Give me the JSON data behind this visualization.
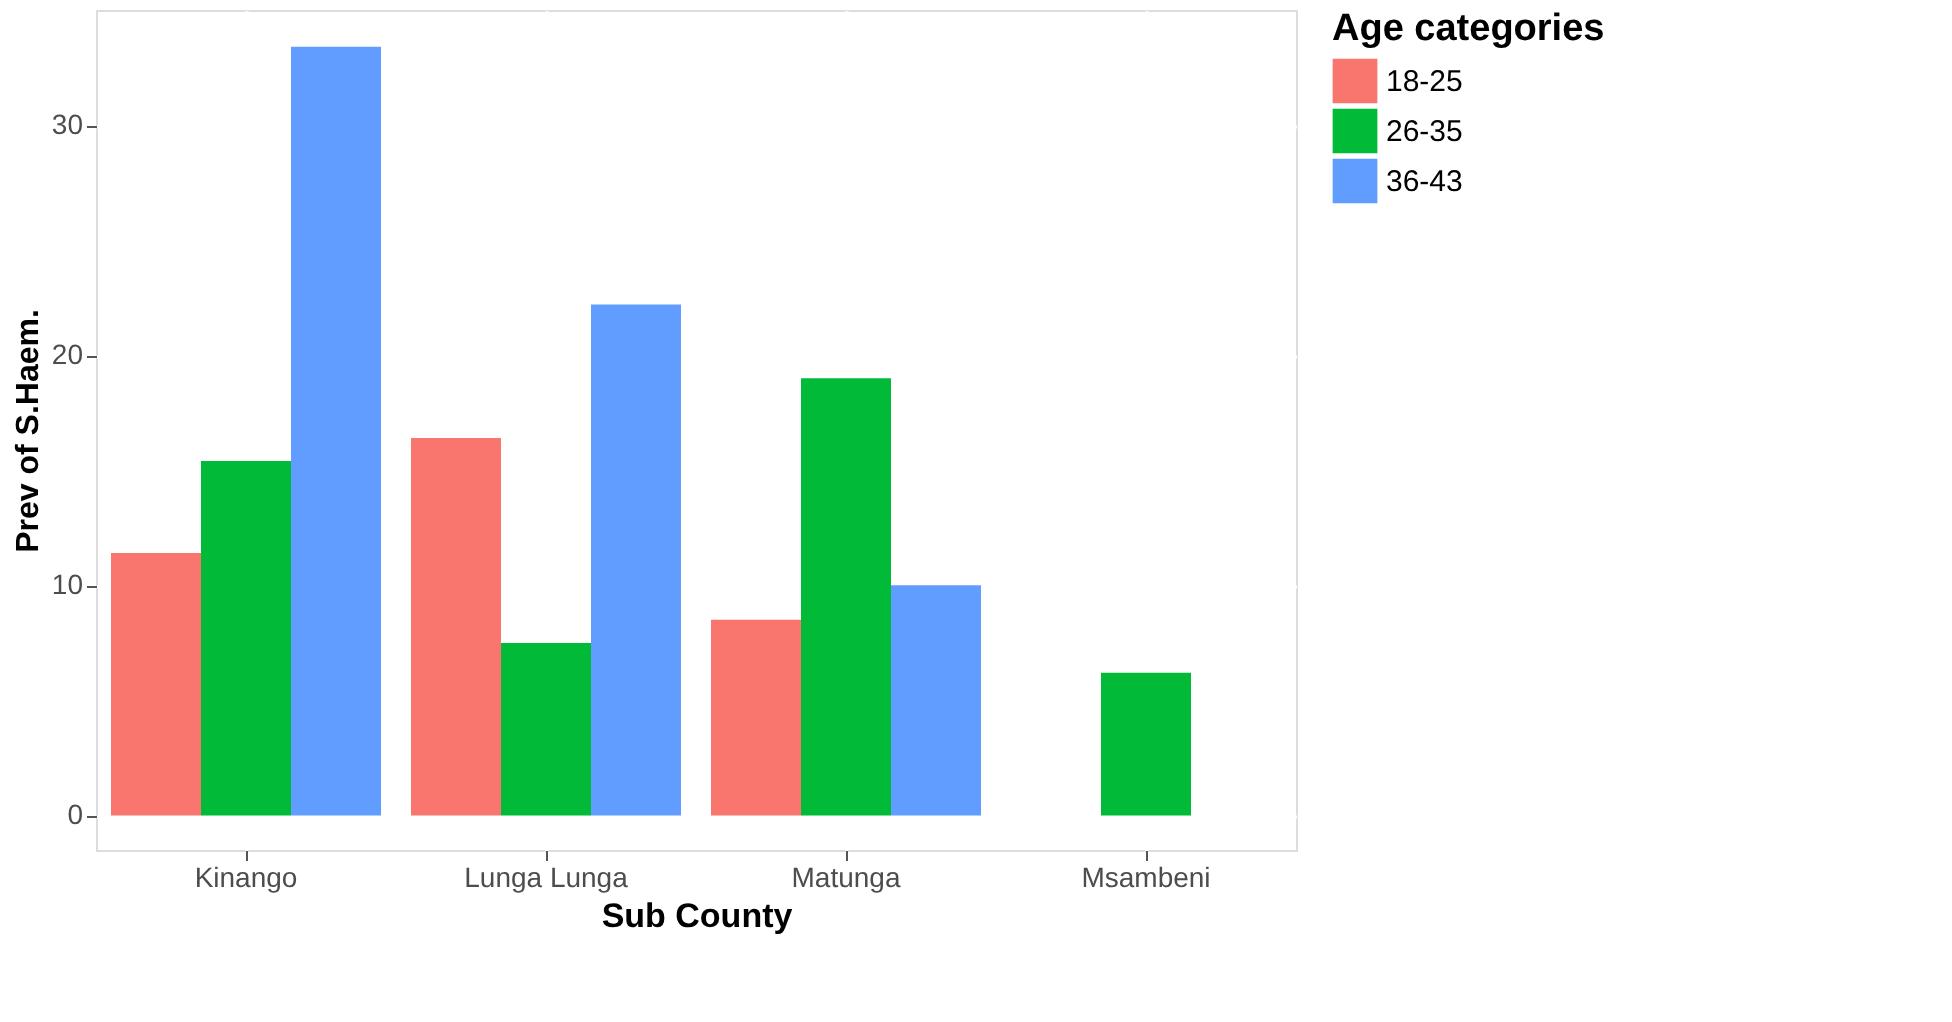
{
  "chart_data": {
    "type": "bar",
    "xlabel": "Sub County",
    "ylabel": "Prev of S.Haem.",
    "legend_title": "Age categories",
    "categories": [
      "Kinango",
      "Lunga Lunga",
      "Matunga",
      "Msambeni"
    ],
    "series": [
      {
        "name": "18-25",
        "color": "#f8766d",
        "values": [
          11.4,
          16.4,
          8.5,
          null
        ]
      },
      {
        "name": "26-35",
        "color": "#00ba38",
        "values": [
          15.4,
          7.5,
          19.0,
          6.2
        ]
      },
      {
        "name": "36-43",
        "color": "#619cff",
        "values": [
          33.4,
          22.2,
          10.0,
          null
        ]
      }
    ],
    "ylim": [
      -1.5,
      35
    ],
    "yticks": [
      0,
      10,
      20,
      30
    ],
    "grid": true,
    "legend": "right"
  }
}
